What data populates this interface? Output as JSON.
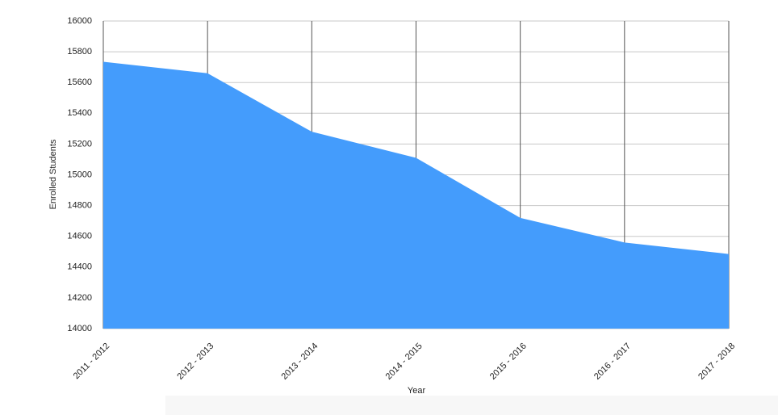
{
  "chart_data": {
    "type": "area",
    "x_label": "Year",
    "y_label": "Enrolled Students",
    "categories": [
      "2011 - 2012",
      "2012 - 2013",
      "2013 - 2014",
      "2014 - 2015",
      "2015 - 2016",
      "2016 - 2017",
      "2017 - 2018"
    ],
    "values": [
      15735,
      15660,
      15280,
      15110,
      14720,
      14560,
      14485
    ],
    "color": "#449cfc",
    "ylim": [
      14000,
      16000
    ],
    "yticks": [
      14000,
      14200,
      14400,
      14600,
      14800,
      15000,
      15200,
      15400,
      15600,
      15800,
      16000
    ],
    "grid": true
  }
}
